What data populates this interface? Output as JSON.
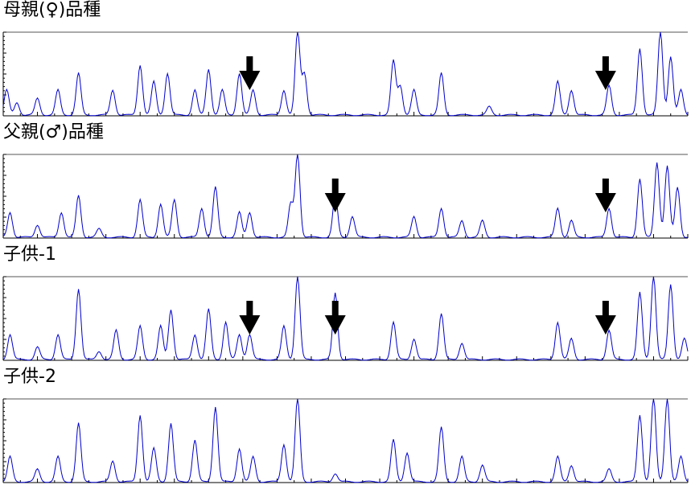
{
  "chart_data": [
    {
      "type": "line",
      "title": "母親(♀)品種",
      "line_color": "#0000cc",
      "arrows_at": [
        0.36,
        0.88
      ],
      "peaks": [
        [
          0.005,
          0.3
        ],
        [
          0.02,
          0.15
        ],
        [
          0.05,
          0.2
        ],
        [
          0.08,
          0.3
        ],
        [
          0.11,
          0.5
        ],
        [
          0.16,
          0.3
        ],
        [
          0.2,
          0.6
        ],
        [
          0.22,
          0.4
        ],
        [
          0.24,
          0.5
        ],
        [
          0.28,
          0.3
        ],
        [
          0.3,
          0.55
        ],
        [
          0.32,
          0.3
        ],
        [
          0.345,
          0.5
        ],
        [
          0.365,
          0.3
        ],
        [
          0.41,
          0.3
        ],
        [
          0.43,
          1.0
        ],
        [
          0.44,
          0.5
        ],
        [
          0.57,
          0.65
        ],
        [
          0.58,
          0.35
        ],
        [
          0.6,
          0.3
        ],
        [
          0.64,
          0.5
        ],
        [
          0.71,
          0.1
        ],
        [
          0.81,
          0.4
        ],
        [
          0.83,
          0.3
        ],
        [
          0.885,
          0.35
        ],
        [
          0.93,
          0.8
        ],
        [
          0.96,
          1.0
        ],
        [
          0.975,
          0.7
        ],
        [
          0.99,
          0.3
        ]
      ]
    },
    {
      "type": "line",
      "title": "父親(♂)品種",
      "line_color": "#0000cc",
      "arrows_at": [
        0.485,
        0.88
      ],
      "peaks": [
        [
          0.01,
          0.3
        ],
        [
          0.05,
          0.15
        ],
        [
          0.085,
          0.3
        ],
        [
          0.11,
          0.5
        ],
        [
          0.14,
          0.1
        ],
        [
          0.2,
          0.45
        ],
        [
          0.23,
          0.4
        ],
        [
          0.25,
          0.45
        ],
        [
          0.29,
          0.35
        ],
        [
          0.31,
          0.6
        ],
        [
          0.345,
          0.3
        ],
        [
          0.36,
          0.3
        ],
        [
          0.42,
          0.4
        ],
        [
          0.43,
          1.0
        ],
        [
          0.485,
          0.5
        ],
        [
          0.51,
          0.25
        ],
        [
          0.6,
          0.25
        ],
        [
          0.64,
          0.35
        ],
        [
          0.67,
          0.2
        ],
        [
          0.7,
          0.2
        ],
        [
          0.81,
          0.35
        ],
        [
          0.83,
          0.2
        ],
        [
          0.885,
          0.35
        ],
        [
          0.93,
          0.7
        ],
        [
          0.955,
          0.9
        ],
        [
          0.97,
          0.85
        ],
        [
          0.985,
          0.6
        ]
      ]
    },
    {
      "type": "line",
      "title": "子供-1",
      "line_color": "#0000cc",
      "arrows_at": [
        0.36,
        0.485,
        0.88
      ],
      "peaks": [
        [
          0.01,
          0.3
        ],
        [
          0.05,
          0.15
        ],
        [
          0.08,
          0.3
        ],
        [
          0.11,
          0.85
        ],
        [
          0.14,
          0.1
        ],
        [
          0.165,
          0.35
        ],
        [
          0.2,
          0.4
        ],
        [
          0.23,
          0.4
        ],
        [
          0.245,
          0.6
        ],
        [
          0.28,
          0.3
        ],
        [
          0.3,
          0.6
        ],
        [
          0.325,
          0.45
        ],
        [
          0.345,
          0.3
        ],
        [
          0.36,
          0.3
        ],
        [
          0.41,
          0.4
        ],
        [
          0.43,
          1.0
        ],
        [
          0.485,
          0.8
        ],
        [
          0.57,
          0.45
        ],
        [
          0.6,
          0.25
        ],
        [
          0.64,
          0.55
        ],
        [
          0.67,
          0.2
        ],
        [
          0.81,
          0.45
        ],
        [
          0.83,
          0.25
        ],
        [
          0.885,
          0.35
        ],
        [
          0.93,
          0.8
        ],
        [
          0.95,
          1.0
        ],
        [
          0.975,
          0.9
        ],
        [
          0.995,
          0.25
        ]
      ]
    },
    {
      "type": "line",
      "title": "子供-2",
      "line_color": "#0000cc",
      "arrows_at": [],
      "peaks": [
        [
          0.01,
          0.3
        ],
        [
          0.05,
          0.15
        ],
        [
          0.08,
          0.3
        ],
        [
          0.11,
          0.7
        ],
        [
          0.16,
          0.25
        ],
        [
          0.2,
          0.8
        ],
        [
          0.22,
          0.4
        ],
        [
          0.245,
          0.7
        ],
        [
          0.28,
          0.5
        ],
        [
          0.31,
          0.9
        ],
        [
          0.345,
          0.4
        ],
        [
          0.365,
          0.3
        ],
        [
          0.41,
          0.45
        ],
        [
          0.43,
          1.0
        ],
        [
          0.485,
          0.1
        ],
        [
          0.57,
          0.5
        ],
        [
          0.59,
          0.35
        ],
        [
          0.64,
          0.65
        ],
        [
          0.67,
          0.3
        ],
        [
          0.7,
          0.2
        ],
        [
          0.81,
          0.3
        ],
        [
          0.83,
          0.2
        ],
        [
          0.885,
          0.15
        ],
        [
          0.93,
          0.8
        ],
        [
          0.95,
          1.0
        ],
        [
          0.97,
          1.0
        ],
        [
          0.99,
          0.3
        ]
      ]
    }
  ]
}
